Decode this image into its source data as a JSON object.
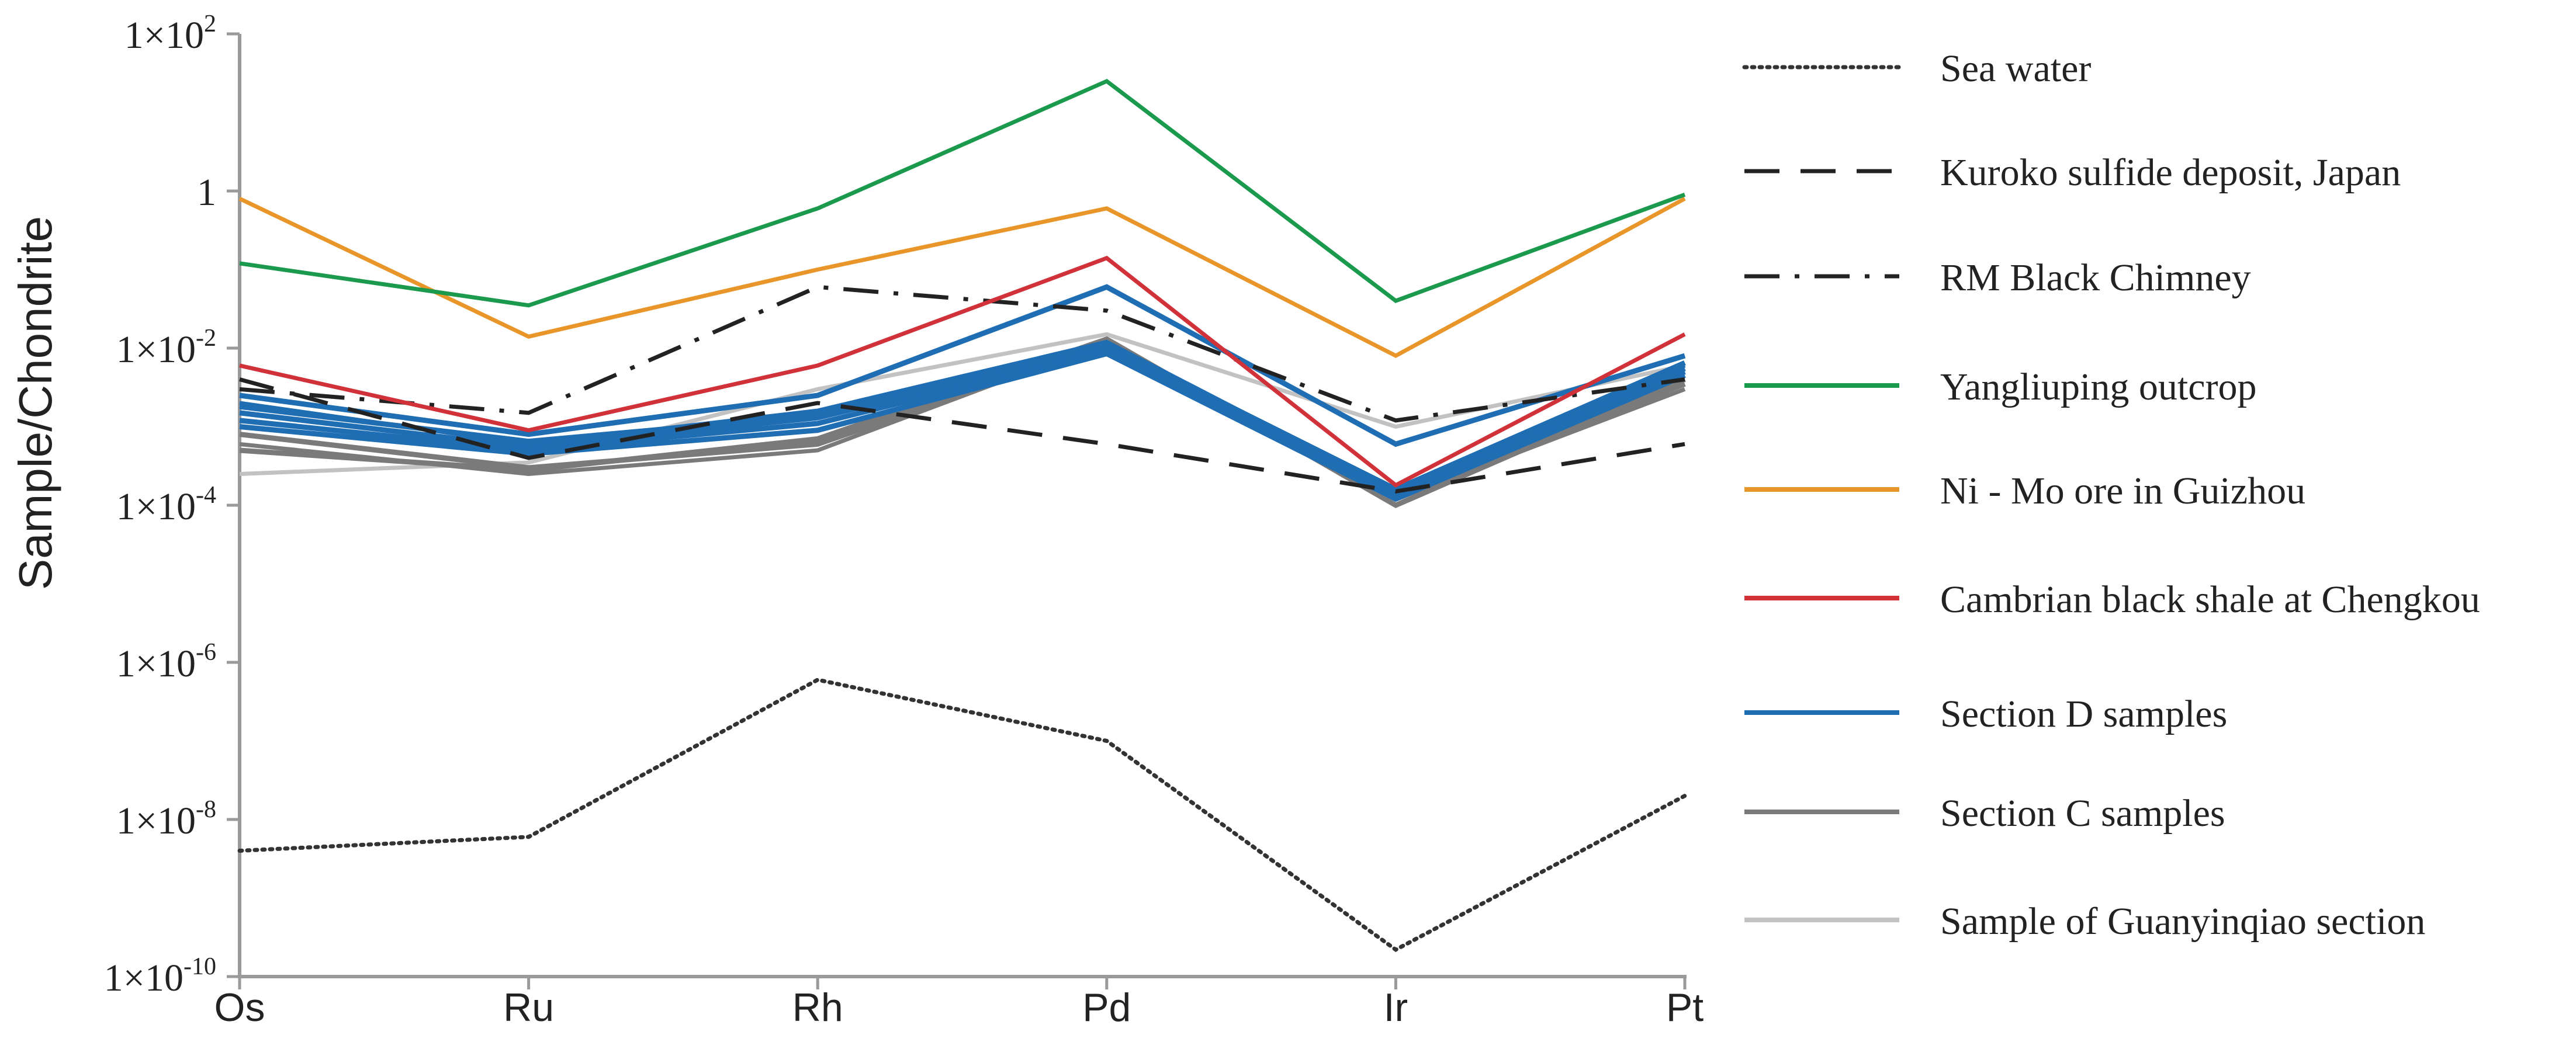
{
  "chart_data": {
    "type": "line",
    "title": "",
    "xlabel": "",
    "ylabel": "Sample/Chondrite",
    "yscale": "log",
    "ylim": [
      1e-10,
      100
    ],
    "categories": [
      "Os",
      "Ru",
      "Rh",
      "Pd",
      "Ir",
      "Pt"
    ],
    "y_ticks": [
      {
        "value": 100,
        "label": "1×10²",
        "base": "1×10",
        "exp": "2"
      },
      {
        "value": 1,
        "label": "1",
        "base": "1",
        "exp": ""
      },
      {
        "value": 0.01,
        "label": "1×10⁻²",
        "base": "1×10",
        "exp": "-2"
      },
      {
        "value": 0.0001,
        "label": "1×10⁻⁴",
        "base": "1×10",
        "exp": "-4"
      },
      {
        "value": 1e-06,
        "label": "1×10⁻⁶",
        "base": "1×10",
        "exp": "-6"
      },
      {
        "value": 1e-08,
        "label": "1×10⁻⁸",
        "base": "1×10",
        "exp": "-8"
      },
      {
        "value": 1e-10,
        "label": "1×10⁻¹⁰",
        "base": "1×10",
        "exp": "-10"
      }
    ],
    "grid": false,
    "legend_position": "right",
    "series": [
      {
        "name": "Sea water",
        "style": "dotted",
        "color": "#333333",
        "values": [
          4e-09,
          6e-09,
          6e-07,
          1e-07,
          2.2e-10,
          2e-08
        ]
      },
      {
        "name": "Kuroko sulfide deposit, Japan",
        "style": "dashed",
        "color": "#222222",
        "values": [
          0.004,
          0.0004,
          0.002,
          0.0006,
          0.00015,
          0.0006
        ]
      },
      {
        "name": "RM Black Chimney",
        "style": "dashdot",
        "color": "#222222",
        "values": [
          0.003,
          0.0015,
          0.06,
          0.03,
          0.0012,
          0.004
        ]
      },
      {
        "name": "Yangliuping outcrop",
        "style": "solid",
        "color": "#1b9a4e",
        "values": [
          0.12,
          0.035,
          0.6,
          25,
          0.04,
          0.9
        ]
      },
      {
        "name": "Ni - Mo ore in Guizhou",
        "style": "solid",
        "color": "#e8962a",
        "values": [
          0.8,
          0.014,
          0.1,
          0.6,
          0.008,
          0.8
        ]
      },
      {
        "name": "Cambrian black shale at Chengkou",
        "style": "solid",
        "color": "#d1323a",
        "values": [
          0.006,
          0.0009,
          0.006,
          0.14,
          0.00018,
          0.015
        ]
      },
      {
        "name": "Section D samples",
        "style": "solid",
        "color": "#1f6db3",
        "values": [
          0.002,
          0.0006,
          0.0016,
          0.012,
          0.00015,
          0.006
        ],
        "extra": [
          [
            0.0015,
            0.00055,
            0.0013,
            0.01,
            0.00014,
            0.0055
          ],
          [
            0.0012,
            0.0005,
            0.0011,
            0.009,
            0.00013,
            0.005
          ],
          [
            0.001,
            0.00045,
            0.0009,
            0.0085,
            0.00012,
            0.0045
          ],
          [
            0.0025,
            0.0008,
            0.0025,
            0.06,
            0.0006,
            0.008
          ],
          [
            0.0018,
            0.00065,
            0.0014,
            0.011,
            0.00016,
            0.0065
          ]
        ]
      },
      {
        "name": "Section C samples",
        "style": "solid",
        "color": "#7a7a7a",
        "values": [
          0.0006,
          0.00025,
          0.0005,
          0.012,
          0.00012,
          0.003
        ],
        "extra": [
          [
            0.0008,
            0.0003,
            0.0006,
            0.011,
            0.00012,
            0.0035
          ],
          [
            0.0005,
            0.00028,
            0.0007,
            0.013,
            0.0001,
            0.004
          ]
        ]
      },
      {
        "name": "Sample of Guanyinqiao section",
        "style": "solid",
        "color": "#c2c2c2",
        "values": [
          0.00025,
          0.00035,
          0.003,
          0.015,
          0.001,
          0.006
        ]
      }
    ]
  }
}
